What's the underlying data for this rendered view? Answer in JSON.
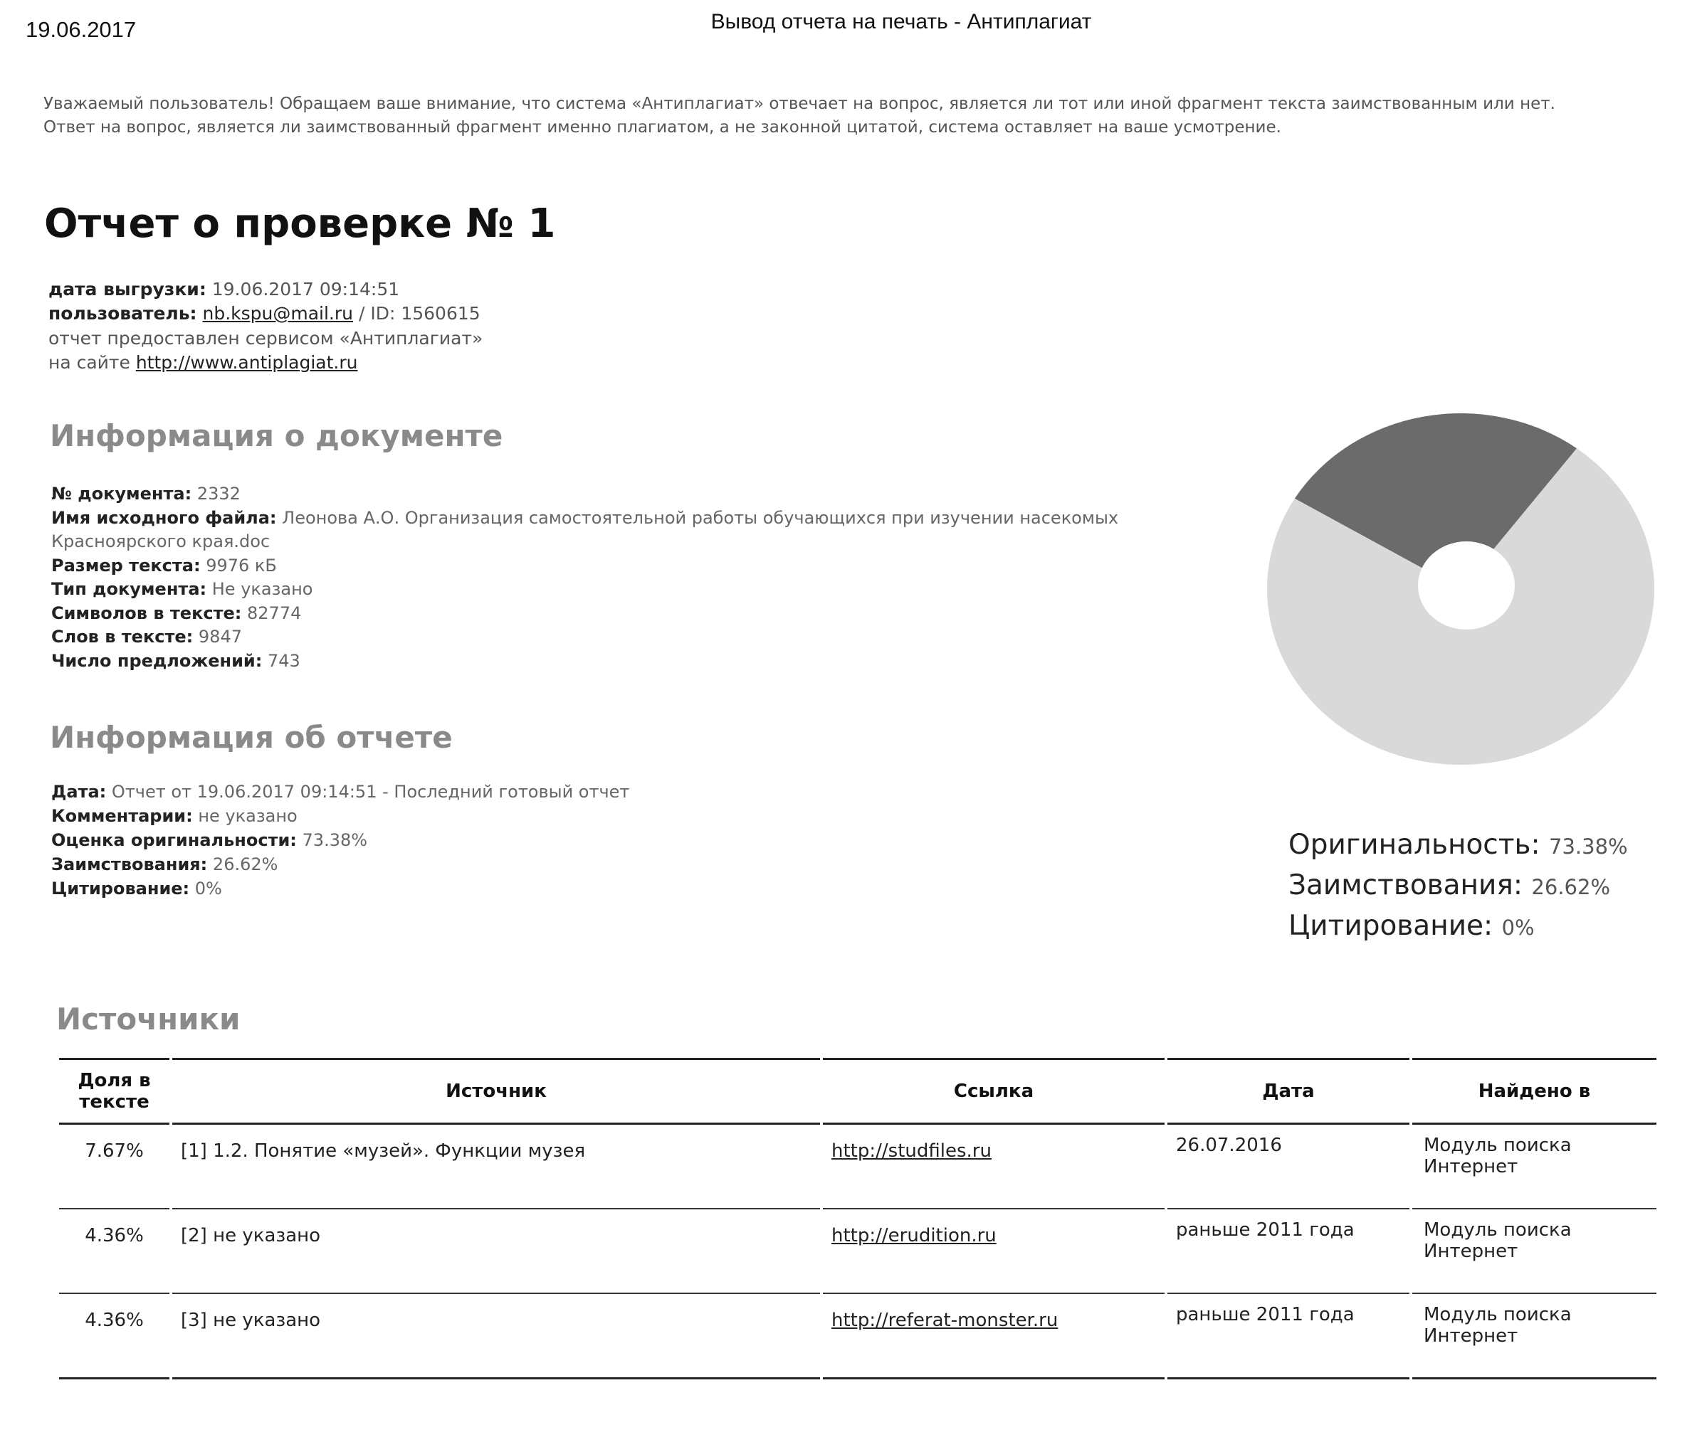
{
  "header": {
    "date": "19.06.2017",
    "title": "Вывод отчета на печать - Антиплагиат"
  },
  "notice": "Уважаемый пользователь! Обращаем ваше внимание, что система «Антиплагиат» отвечает на вопрос, является ли тот или иной фрагмент текста заимствованным или нет. Ответ на вопрос, является ли заимствованный фрагмент именно плагиатом, а не законной цитатой, система оставляет на ваше усмотрение.",
  "report_title": "Отчет о проверке № 1",
  "meta": {
    "export_label": "дата выгрузки:",
    "export_value": "19.06.2017 09:14:51",
    "user_label": "пользователь:",
    "user_email": "nb.kspu@mail.ru",
    "user_id": "/ ID: 1560615",
    "provided_by": "отчет предоставлен сервисом «Антиплагиат»",
    "site_prefix": "на сайте",
    "site_url": "http://www.antiplagiat.ru"
  },
  "doc_info": {
    "heading": "Информация о документе",
    "fields": [
      {
        "label": "№ документа:",
        "value": "2332"
      },
      {
        "label": "Имя исходного файла:",
        "value": "Леонова А.О. Организация самостоятельной работы обучающихся при изучении насекомых"
      },
      {
        "label": "",
        "value": "Красноярского края.doc"
      },
      {
        "label": "Размер текста:",
        "value": "9976 кБ"
      },
      {
        "label": "Тип документа:",
        "value": "Не указано"
      },
      {
        "label": "Символов в тексте:",
        "value": "82774"
      },
      {
        "label": "Слов в тексте:",
        "value": "9847"
      },
      {
        "label": "Число предложений:",
        "value": "743"
      }
    ]
  },
  "report_info": {
    "heading": "Информация об отчете",
    "fields": [
      {
        "label": "Дата:",
        "value": "Отчет от 19.06.2017 09:14:51 - Последний готовый отчет"
      },
      {
        "label": "Комментарии:",
        "value": "не указано"
      },
      {
        "label": "Оценка оригинальности:",
        "value": "73.38%"
      },
      {
        "label": "Заимствования:",
        "value": "26.62%"
      },
      {
        "label": "Цитирование:",
        "value": "0%"
      }
    ]
  },
  "chart_data": {
    "type": "pie",
    "slices": [
      {
        "label": "Оригинальность",
        "value": 73.38,
        "color": "#d9d9d9"
      },
      {
        "label": "Заимствования",
        "value": 26.62,
        "color": "#6b6b6b"
      },
      {
        "label": "Цитирование",
        "value": 0,
        "color": "#999999"
      }
    ],
    "legend": [
      {
        "label": "Оригинальность:",
        "value": "73.38%"
      },
      {
        "label": "Заимствования:",
        "value": "26.62%"
      },
      {
        "label": "Цитирование:",
        "value": "0%"
      }
    ],
    "legend_placement": "bottom"
  },
  "sources": {
    "heading": "Источники",
    "columns": [
      "Доля в тексте",
      "Источник",
      "Ссылка",
      "Дата",
      "Найдено в"
    ],
    "rows": [
      {
        "share": "7.67%",
        "source": "[1] 1.2. Понятие «музей». Функции музея",
        "link": "http://studfiles.ru",
        "date": "26.07.2016",
        "found": "Модуль поиска Интернет"
      },
      {
        "share": "4.36%",
        "source": "[2] не указано",
        "link": "http://erudition.ru",
        "date": "раньше 2011 года",
        "found": "Модуль поиска Интернет"
      },
      {
        "share": "4.36%",
        "source": "[3] не указано",
        "link": "http://referat-monster.ru",
        "date": "раньше 2011 года",
        "found": "Модуль поиска Интернет"
      }
    ]
  }
}
